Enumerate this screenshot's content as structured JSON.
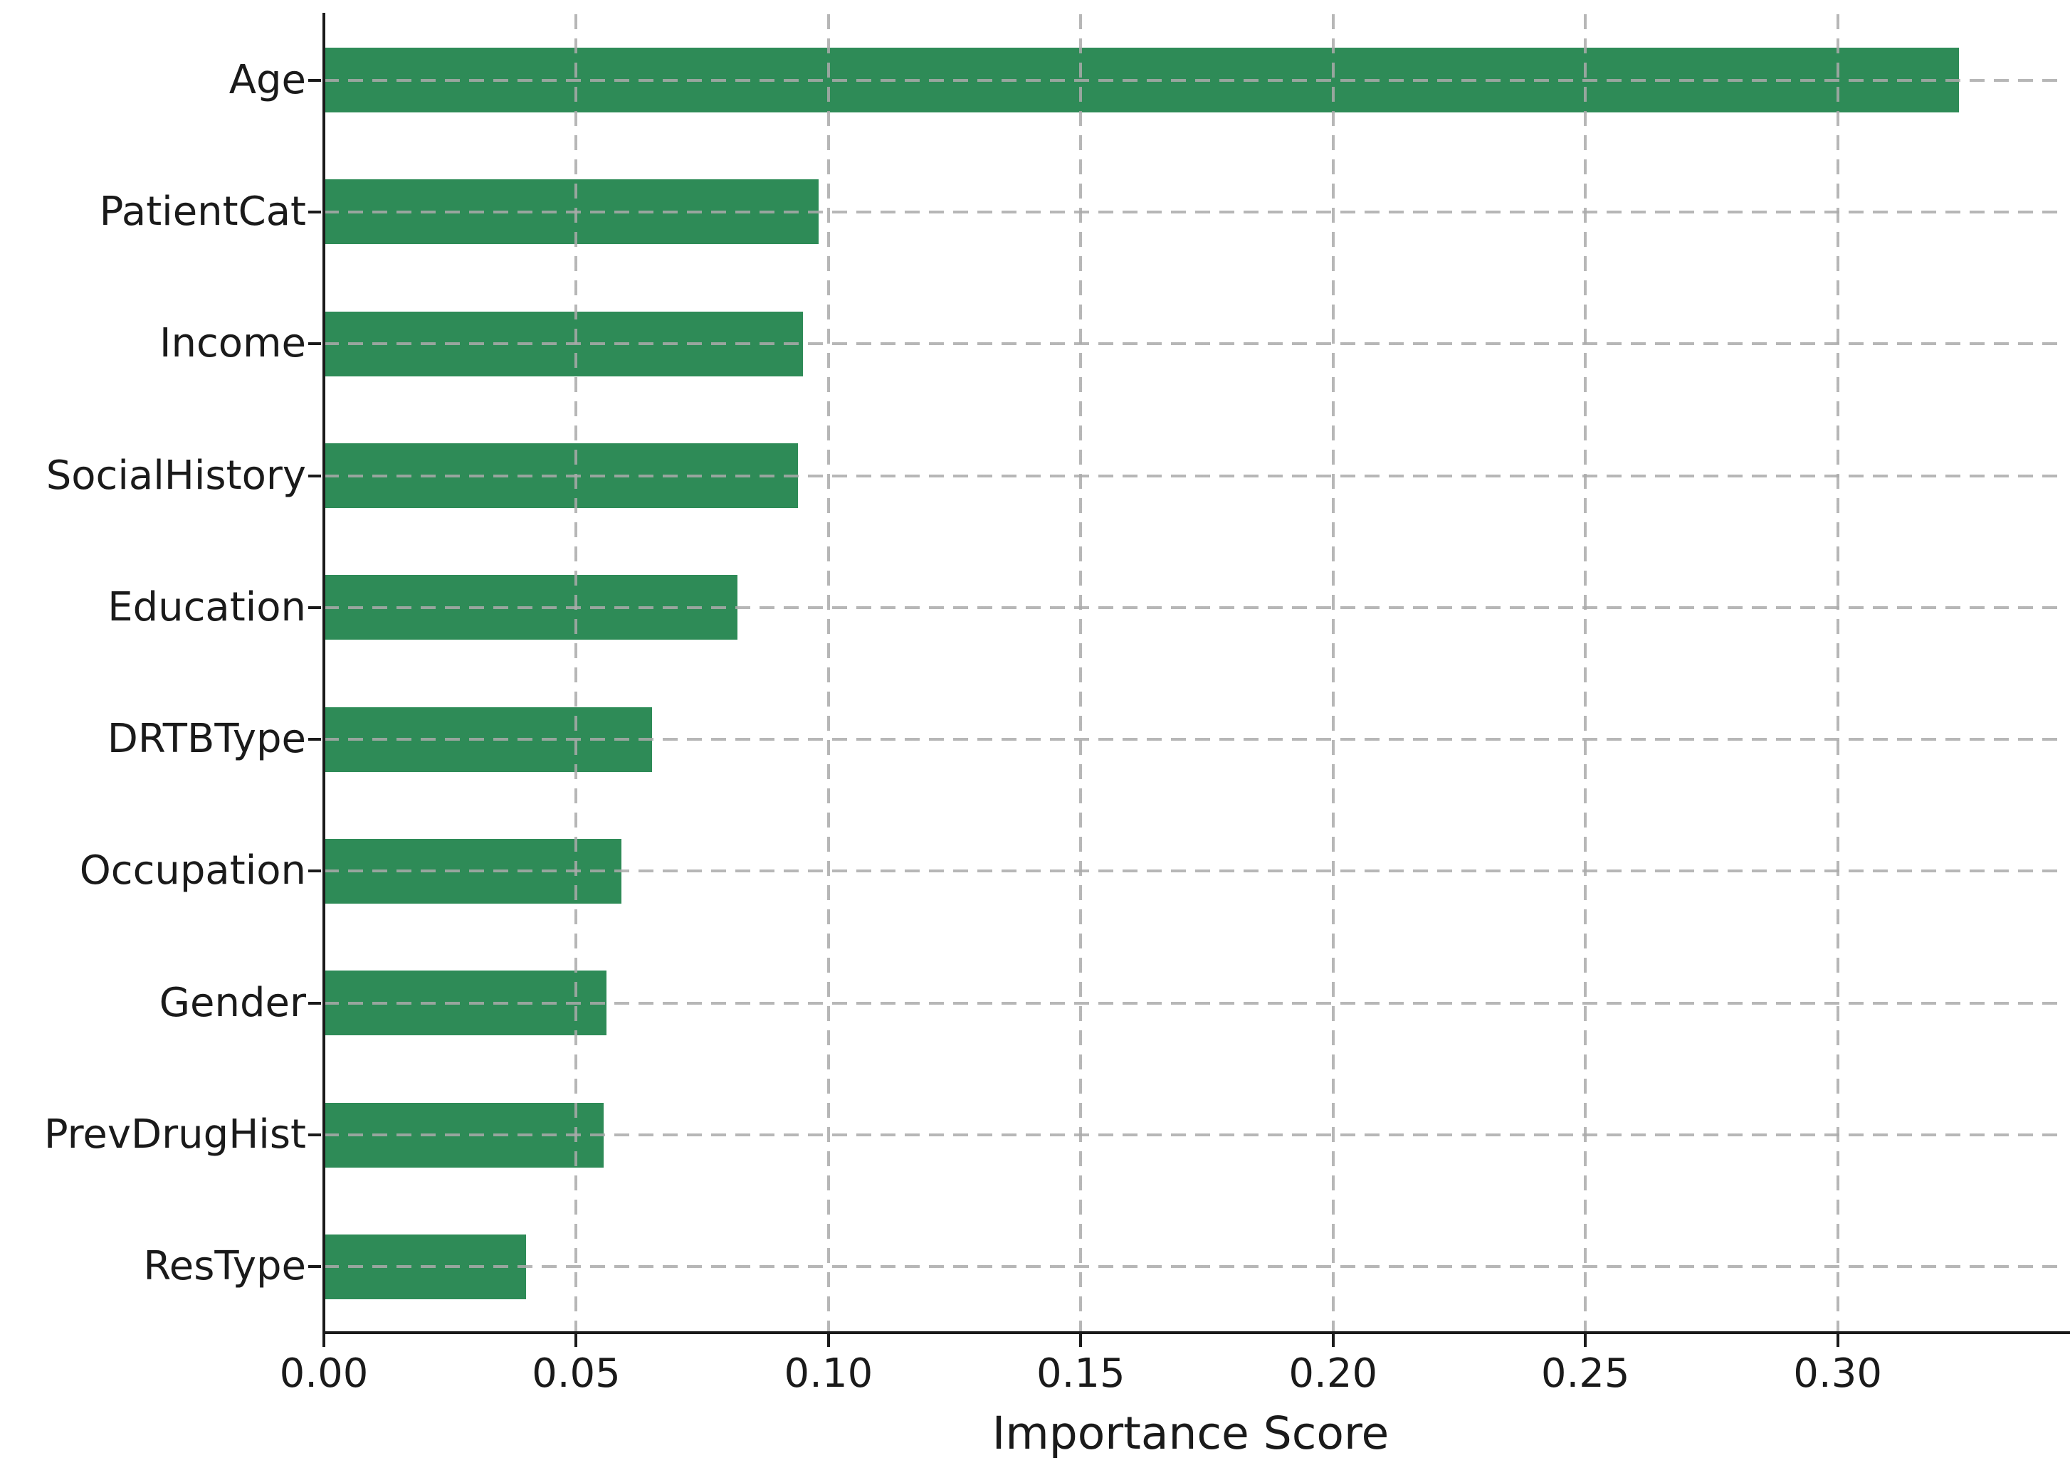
{
  "chart_data": {
    "type": "bar",
    "orientation": "horizontal",
    "title": "",
    "xlabel": "Importance Score",
    "ylabel": "",
    "categories": [
      "Age",
      "PatientCat",
      "Income",
      "SocialHistory",
      "Education",
      "DRTBType",
      "Occupation",
      "Gender",
      "PrevDrugHist",
      "ResType"
    ],
    "values": [
      0.324,
      0.098,
      0.095,
      0.094,
      0.082,
      0.065,
      0.059,
      0.056,
      0.0555,
      0.04
    ],
    "xticks": [
      0.0,
      0.05,
      0.1,
      0.15,
      0.2,
      0.25,
      0.3
    ],
    "xtick_labels": [
      "0.00",
      "0.05",
      "0.10",
      "0.15",
      "0.20",
      "0.25",
      "0.30"
    ],
    "xlim": [
      0,
      0.3435
    ],
    "grid": "dashed gridlines on both axes, drawn over bars",
    "legend_position": "none",
    "bar_width_fraction": 0.49,
    "colors": {
      "bar": "#2e8b57",
      "grid": "#aaaaaa",
      "axis": "#1a1a1a",
      "text": "#1a1a1a",
      "background": "#ffffff"
    }
  }
}
